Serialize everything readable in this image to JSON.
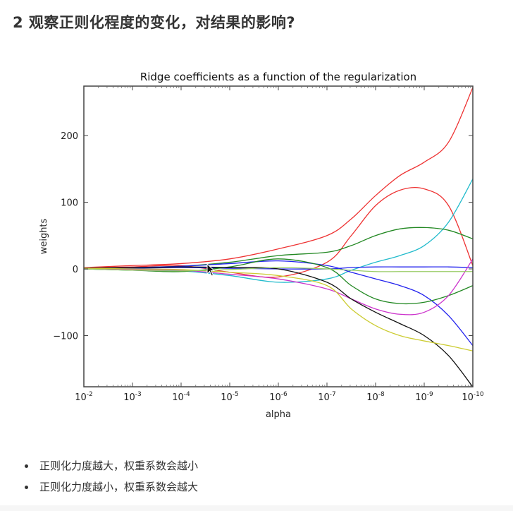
{
  "page": {
    "title": "2 观察正则化程度的变化，对结果的影响?",
    "bullets": [
      "正则化力度越大，权重系数会越小",
      "正则化力度越小，权重系数会越大"
    ]
  },
  "chart_data": {
    "type": "line",
    "title": "Ridge coefficients as a function of the regularization",
    "xlabel": "alpha",
    "ylabel": "weights",
    "xscale": "log",
    "x_direction": "decreasing",
    "x_ticks": [
      "10^-2",
      "10^-3",
      "10^-4",
      "10^-5",
      "10^-6",
      "10^-7",
      "10^-8",
      "10^-9",
      "10^-10"
    ],
    "x_tick_labels": [
      {
        "base": "10",
        "exp": "-2"
      },
      {
        "base": "10",
        "exp": "-3"
      },
      {
        "base": "10",
        "exp": "-4"
      },
      {
        "base": "10",
        "exp": "-5"
      },
      {
        "base": "10",
        "exp": "-6"
      },
      {
        "base": "10",
        "exp": "-7"
      },
      {
        "base": "10",
        "exp": "-8"
      },
      {
        "base": "10",
        "exp": "-9"
      },
      {
        "base": "10",
        "exp": "-10"
      }
    ],
    "y_ticks": [
      200,
      100,
      0,
      -100
    ],
    "y_tick_labels": [
      "200",
      "100",
      "0",
      "−100"
    ],
    "ylim": [
      -177,
      274
    ],
    "grid": false,
    "legend": "none",
    "x_positions_log10": [
      -2,
      -3,
      -4,
      -5,
      -6,
      -7,
      -7.5,
      -8,
      -8.5,
      -9,
      -9.5,
      -10
    ],
    "series": [
      {
        "name": "coef-red-1",
        "color": "#ee3333",
        "values": [
          2,
          5,
          8,
          15,
          30,
          50,
          75,
          110,
          140,
          160,
          190,
          272
        ]
      },
      {
        "name": "coef-red-2",
        "color": "#ee3333",
        "values": [
          1,
          3,
          5,
          -5,
          -12,
          10,
          50,
          95,
          118,
          120,
          95,
          5
        ]
      },
      {
        "name": "coef-cyan",
        "color": "#22bbcc",
        "values": [
          0,
          -2,
          -3,
          -10,
          -20,
          -15,
          -2,
          10,
          20,
          35,
          70,
          135
        ]
      },
      {
        "name": "coef-green-1",
        "color": "#228822",
        "values": [
          1,
          2,
          4,
          10,
          20,
          25,
          35,
          50,
          60,
          62,
          58,
          45
        ]
      },
      {
        "name": "coef-blue-1",
        "color": "#2222ee",
        "values": [
          0,
          1,
          2,
          1,
          0,
          0,
          2,
          3,
          3,
          3,
          3,
          2
        ]
      },
      {
        "name": "coef-blue-2",
        "color": "#2222ee",
        "values": [
          1,
          2,
          4,
          8,
          12,
          5,
          -5,
          -15,
          -25,
          -40,
          -70,
          -115
        ]
      },
      {
        "name": "coef-green-2",
        "color": "#228822",
        "values": [
          0,
          -2,
          -4,
          3,
          15,
          2,
          -25,
          -45,
          -52,
          -50,
          -40,
          -25
        ]
      },
      {
        "name": "coef-magenta",
        "color": "#cc33cc",
        "values": [
          0,
          -1,
          -2,
          -8,
          -15,
          -30,
          -45,
          -60,
          -68,
          -65,
          -40,
          15
        ]
      },
      {
        "name": "coef-black",
        "color": "#111111",
        "values": [
          1,
          2,
          3,
          2,
          0,
          -20,
          -45,
          -65,
          -82,
          -100,
          -130,
          -177
        ]
      },
      {
        "name": "coef-yellow",
        "color": "#cccc33",
        "values": [
          1,
          0,
          -1,
          -5,
          -10,
          -25,
          -60,
          -85,
          -100,
          -108,
          -115,
          -123
        ]
      },
      {
        "name": "coef-olive",
        "color": "#99cc66",
        "values": [
          0,
          -2,
          -3,
          -1,
          2,
          0,
          -2,
          -4,
          -4,
          -4,
          -4,
          -4
        ]
      }
    ]
  }
}
